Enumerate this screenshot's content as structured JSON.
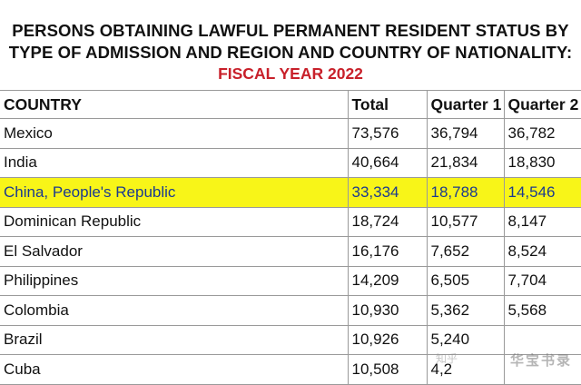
{
  "header": {
    "title_line1": "PERSONS OBTAINING LAWFUL PERMANENT RESIDENT STATUS BY",
    "title_line2": "TYPE OF ADMISSION AND REGION AND COUNTRY OF NATIONALITY:",
    "subtitle": "FISCAL YEAR 2022"
  },
  "table": {
    "columns": [
      "COUNTRY",
      "Total",
      "Quarter 1",
      "Quarter 2"
    ],
    "rows": [
      {
        "country": "Mexico",
        "total": "73,576",
        "q1": "36,794",
        "q2": "36,782"
      },
      {
        "country": "India",
        "total": "40,664",
        "q1": "21,834",
        "q2": "18,830"
      },
      {
        "country": "China, People's Republic",
        "total": "33,334",
        "q1": "18,788",
        "q2": "14,546"
      },
      {
        "country": "Dominican Republic",
        "total": "18,724",
        "q1": "10,577",
        "q2": "8,147"
      },
      {
        "country": "El Salvador",
        "total": "16,176",
        "q1": "7,652",
        "q2": "8,524"
      },
      {
        "country": "Philippines",
        "total": "14,209",
        "q1": "6,505",
        "q2": "7,704"
      },
      {
        "country": "Colombia",
        "total": "10,930",
        "q1": "5,362",
        "q2": "5,568"
      },
      {
        "country": "Brazil",
        "total": "10,926",
        "q1": "5,240",
        "q2": ""
      },
      {
        "country": "Cuba",
        "total": "10,508",
        "q1": "4,2",
        "q2": ""
      }
    ],
    "highlight_color": "#f8f518",
    "highlight_text_color": "#1b3a90"
  },
  "watermarks": {
    "main": "华宝书录",
    "secondary": "知乎"
  },
  "colors": {
    "subtitle": "#c8202a",
    "border": "#9a9a9a"
  }
}
